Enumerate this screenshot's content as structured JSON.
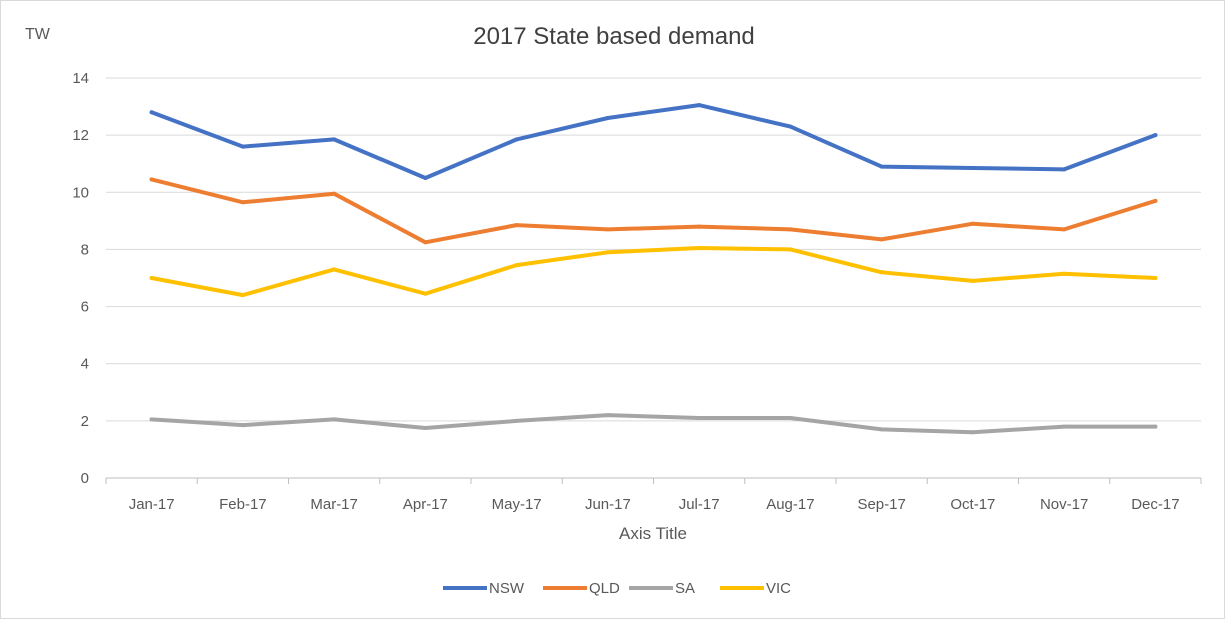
{
  "chart_data": {
    "type": "line",
    "title": "2017 State based demand",
    "xlabel": "Axis Title",
    "ylabel": "TW",
    "ylim": [
      0,
      14
    ],
    "yticks": [
      0,
      2,
      4,
      6,
      8,
      10,
      12,
      14
    ],
    "grid": true,
    "legend_position": "bottom",
    "categories": [
      "Jan-17",
      "Feb-17",
      "Mar-17",
      "Apr-17",
      "May-17",
      "Jun-17",
      "Jul-17",
      "Aug-17",
      "Sep-17",
      "Oct-17",
      "Nov-17",
      "Dec-17"
    ],
    "series": [
      {
        "name": "NSW",
        "color": "#4472C4",
        "values": [
          12.8,
          11.6,
          11.85,
          10.5,
          11.85,
          12.6,
          13.05,
          12.3,
          10.9,
          10.85,
          10.8,
          12.0
        ]
      },
      {
        "name": "QLD",
        "color": "#ED7D31",
        "values": [
          10.45,
          9.65,
          9.95,
          8.25,
          8.85,
          8.7,
          8.8,
          8.7,
          8.35,
          8.9,
          8.7,
          9.7
        ]
      },
      {
        "name": "SA",
        "color": "#A5A5A5",
        "values": [
          2.05,
          1.85,
          2.05,
          1.75,
          2.0,
          2.2,
          2.1,
          2.1,
          1.7,
          1.6,
          1.8,
          1.8
        ]
      },
      {
        "name": "VIC",
        "color": "#FFC000",
        "values": [
          7.0,
          6.4,
          7.3,
          6.45,
          7.45,
          7.9,
          8.05,
          8.0,
          7.2,
          6.9,
          7.15,
          7.0
        ]
      }
    ]
  }
}
